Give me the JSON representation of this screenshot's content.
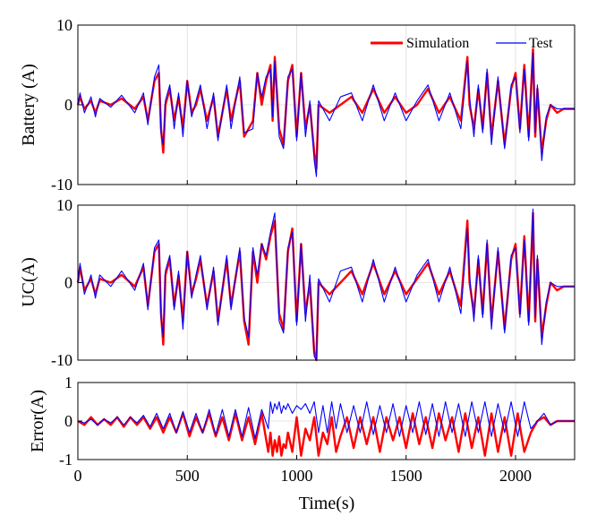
{
  "chart_data": [
    {
      "type": "line",
      "ylabel": "Battery (A)",
      "ylim": [
        -10,
        10
      ],
      "yticks": [
        -10,
        0,
        10
      ],
      "xlim": [
        0,
        2270
      ],
      "xticks": [
        0,
        500,
        1000,
        1500,
        2000
      ],
      "grid": true,
      "legend": {
        "position": "top-right",
        "entries": [
          "Simulation",
          "Test"
        ]
      },
      "series": [
        {
          "name": "Simulation",
          "color": "#ff0000",
          "x": [
            0,
            10,
            30,
            60,
            80,
            100,
            150,
            200,
            260,
            300,
            320,
            350,
            370,
            380,
            390,
            400,
            420,
            440,
            460,
            480,
            500,
            520,
            540,
            560,
            590,
            620,
            640,
            680,
            700,
            740,
            760,
            800,
            820,
            840,
            860,
            880,
            890,
            900,
            920,
            940,
            960,
            980,
            1000,
            1020,
            1040,
            1060,
            1080,
            1090,
            1100,
            1150,
            1200,
            1250,
            1300,
            1350,
            1400,
            1450,
            1500,
            1550,
            1600,
            1650,
            1700,
            1750,
            1780,
            1790,
            1810,
            1830,
            1850,
            1870,
            1890,
            1920,
            1950,
            1980,
            2000,
            2020,
            2040,
            2060,
            2080,
            2090,
            2100,
            2120,
            2140,
            2160,
            2190,
            2220,
            2270
          ],
          "values": [
            0,
            1,
            -0.5,
            0.5,
            -1,
            0.5,
            0,
            0.8,
            -0.5,
            1,
            -2,
            3,
            4,
            -3,
            -6,
            0,
            2,
            -2,
            1,
            -3,
            3,
            -1,
            0,
            2,
            -2,
            1,
            -4,
            2,
            -2,
            3,
            -4,
            -2,
            4,
            0,
            3,
            5,
            -2,
            6,
            -3,
            -5,
            3,
            5,
            -4,
            4,
            -3,
            0,
            -6,
            -8,
            0,
            -1,
            0,
            1,
            -1,
            2,
            -1,
            1,
            -1,
            0,
            2,
            -1,
            1,
            -2,
            6,
            0,
            -3,
            2,
            -3,
            4,
            -4,
            3,
            -5,
            2,
            4,
            -3,
            5,
            -4,
            7,
            -4,
            2,
            -6,
            -2,
            0,
            -1,
            -0.5,
            -0.5
          ]
        },
        {
          "name": "Test",
          "color": "#0000ff",
          "x": [
            0,
            10,
            30,
            60,
            80,
            100,
            150,
            200,
            260,
            300,
            320,
            350,
            370,
            380,
            390,
            400,
            420,
            440,
            460,
            480,
            500,
            520,
            540,
            560,
            590,
            620,
            640,
            680,
            700,
            740,
            760,
            800,
            820,
            840,
            860,
            880,
            890,
            900,
            920,
            940,
            960,
            980,
            1000,
            1020,
            1040,
            1060,
            1080,
            1090,
            1100,
            1150,
            1200,
            1250,
            1300,
            1350,
            1400,
            1450,
            1500,
            1550,
            1600,
            1650,
            1700,
            1750,
            1780,
            1790,
            1810,
            1830,
            1850,
            1870,
            1890,
            1920,
            1950,
            1980,
            2000,
            2020,
            2040,
            2060,
            2080,
            2090,
            2100,
            2120,
            2140,
            2160,
            2190,
            2220,
            2270
          ],
          "values": [
            0,
            1.5,
            -1,
            1,
            -1.5,
            0.8,
            -0.3,
            1.2,
            -1,
            1.5,
            -2.5,
            3.5,
            5,
            -3.5,
            -5,
            0.5,
            2.5,
            -3,
            1.5,
            -4,
            3,
            -1.5,
            0.5,
            2.5,
            -3,
            1.5,
            -4.5,
            2.5,
            -3,
            3.5,
            -3.5,
            -3,
            4,
            1,
            3.5,
            4.5,
            -1.5,
            5.5,
            -4,
            -5.5,
            3.5,
            4.5,
            -4.5,
            4,
            -4,
            0.5,
            -7,
            -9,
            0.5,
            -2,
            1,
            1.5,
            -2,
            2.5,
            -2,
            1.5,
            -2,
            0.5,
            2.5,
            -2,
            1.5,
            -3,
            5.5,
            1,
            -4,
            2.5,
            -3.5,
            4.5,
            -5,
            3.5,
            -5.5,
            2.5,
            3.5,
            -3.5,
            4.5,
            -4.5,
            6.5,
            -3.5,
            2.5,
            -7,
            -1.5,
            0,
            -0.5,
            -0.5,
            -0.5
          ]
        }
      ]
    },
    {
      "type": "line",
      "ylabel": "UC(A)",
      "ylim": [
        -10,
        10
      ],
      "yticks": [
        -10,
        0,
        10
      ],
      "xlim": [
        0,
        2270
      ],
      "xticks": [
        0,
        500,
        1000,
        1500,
        2000
      ],
      "grid": true,
      "series": [
        {
          "name": "Simulation",
          "color": "#ff0000",
          "x": [
            0,
            10,
            30,
            60,
            80,
            100,
            150,
            200,
            260,
            300,
            320,
            350,
            370,
            380,
            390,
            400,
            420,
            440,
            460,
            480,
            500,
            520,
            540,
            560,
            590,
            620,
            640,
            680,
            700,
            740,
            760,
            780,
            800,
            820,
            840,
            860,
            880,
            900,
            920,
            940,
            960,
            980,
            1000,
            1020,
            1040,
            1060,
            1080,
            1090,
            1100,
            1150,
            1200,
            1250,
            1300,
            1350,
            1400,
            1450,
            1500,
            1550,
            1600,
            1650,
            1700,
            1750,
            1780,
            1790,
            1810,
            1830,
            1850,
            1870,
            1890,
            1920,
            1950,
            1980,
            2000,
            2020,
            2040,
            2060,
            2080,
            2090,
            2100,
            2120,
            2140,
            2160,
            2190,
            2220,
            2270
          ],
          "values": [
            0,
            2,
            -1,
            0.5,
            -1.5,
            0.5,
            0,
            1,
            -0.5,
            2,
            -3,
            4,
            5,
            -4,
            -8,
            1,
            3,
            -3,
            1,
            -5,
            4,
            -1.5,
            0.5,
            3,
            -3,
            1.5,
            -5,
            3,
            -3,
            4,
            -5,
            -8,
            4,
            0,
            5,
            3,
            6,
            8,
            -4,
            -6,
            4,
            7,
            -5,
            5,
            -4,
            0,
            -9,
            -10,
            0,
            -1.5,
            0,
            1.5,
            -1.5,
            2.5,
            -1.5,
            1.5,
            -1.5,
            0.5,
            2.5,
            -1.5,
            1.5,
            -3,
            8,
            0,
            -4,
            3,
            -4,
            5,
            -5,
            4,
            -6,
            3,
            5,
            -4,
            6,
            -5,
            9,
            -5,
            3,
            -7,
            -3,
            0,
            -1,
            -0.5,
            -0.5
          ]
        },
        {
          "name": "Test",
          "color": "#0000ff",
          "x": [
            0,
            10,
            30,
            60,
            80,
            100,
            150,
            200,
            260,
            300,
            320,
            350,
            370,
            380,
            390,
            400,
            420,
            440,
            460,
            480,
            500,
            520,
            540,
            560,
            590,
            620,
            640,
            680,
            700,
            740,
            760,
            780,
            800,
            820,
            840,
            860,
            880,
            900,
            920,
            940,
            960,
            980,
            1000,
            1020,
            1040,
            1060,
            1080,
            1090,
            1100,
            1150,
            1200,
            1250,
            1300,
            1350,
            1400,
            1450,
            1500,
            1550,
            1600,
            1650,
            1700,
            1750,
            1780,
            1790,
            1810,
            1830,
            1850,
            1870,
            1890,
            1920,
            1950,
            1980,
            2000,
            2020,
            2040,
            2060,
            2080,
            2090,
            2100,
            2120,
            2140,
            2160,
            2190,
            2220,
            2270
          ],
          "values": [
            0,
            2.5,
            -1.5,
            1,
            -2,
            1,
            -0.5,
            1.5,
            -1,
            2.5,
            -3.5,
            4.5,
            5.5,
            -4.5,
            -7,
            1.5,
            3.5,
            -3.5,
            1.5,
            -6,
            4,
            -2,
            1,
            3.5,
            -3.5,
            2,
            -5.5,
            3.5,
            -3.5,
            4.5,
            -4.5,
            -7,
            4.5,
            1,
            5,
            3.5,
            6.5,
            9,
            -5,
            -6.5,
            4.5,
            6.5,
            -5.5,
            5,
            -5,
            1,
            -9.5,
            -10,
            0.5,
            -2.5,
            1.5,
            2,
            -2.5,
            3,
            -2.5,
            2,
            -2.5,
            1,
            3,
            -2.5,
            2,
            -4,
            7,
            1,
            -5,
            3.5,
            -4.5,
            5.5,
            -6,
            4.5,
            -6.5,
            3.5,
            4.5,
            -4.5,
            5.5,
            -5.5,
            9.5,
            -4.5,
            3.5,
            -8,
            -2.5,
            0,
            -0.5,
            -0.5,
            -0.5
          ]
        }
      ]
    },
    {
      "type": "line",
      "ylabel": "Error(A)",
      "xlabel": "Time(s)",
      "ylim": [
        -1,
        1
      ],
      "yticks": [
        -1,
        0,
        1
      ],
      "xlim": [
        0,
        2270
      ],
      "xticks": [
        0,
        500,
        1000,
        1500,
        2000
      ],
      "grid": true,
      "series": [
        {
          "name": "Simulation",
          "color": "#ff0000",
          "x": [
            0,
            30,
            60,
            90,
            120,
            150,
            180,
            210,
            240,
            270,
            300,
            330,
            360,
            390,
            420,
            450,
            480,
            510,
            540,
            570,
            600,
            630,
            660,
            690,
            720,
            750,
            780,
            810,
            840,
            870,
            880,
            890,
            900,
            910,
            920,
            930,
            940,
            950,
            960,
            980,
            1000,
            1020,
            1040,
            1060,
            1080,
            1100,
            1120,
            1140,
            1160,
            1180,
            1200,
            1230,
            1260,
            1290,
            1320,
            1350,
            1380,
            1410,
            1440,
            1470,
            1500,
            1530,
            1560,
            1590,
            1620,
            1650,
            1680,
            1710,
            1740,
            1770,
            1800,
            1830,
            1860,
            1890,
            1920,
            1950,
            1980,
            2010,
            2040,
            2070,
            2100,
            2130,
            2160,
            2190,
            2220,
            2270
          ],
          "values": [
            0,
            -0.1,
            0.1,
            -0.1,
            0.05,
            -0.1,
            0.1,
            -0.15,
            0.1,
            -0.1,
            0.1,
            -0.2,
            0.1,
            -0.3,
            0.1,
            -0.3,
            0.2,
            -0.4,
            0.1,
            -0.3,
            0.2,
            -0.4,
            0.1,
            -0.5,
            0.2,
            -0.5,
            0.1,
            -0.6,
            0.2,
            -0.8,
            -0.3,
            -0.9,
            -0.5,
            -0.8,
            -0.4,
            -0.9,
            -0.6,
            -0.7,
            -0.3,
            -0.8,
            0.1,
            -0.9,
            -0.2,
            -0.5,
            0.1,
            -0.9,
            -0.3,
            -0.6,
            0.1,
            -0.8,
            -0.4,
            0.1,
            -0.7,
            0.1,
            -0.6,
            0.1,
            -0.8,
            0.1,
            -0.5,
            0.1,
            -0.7,
            0.2,
            -0.6,
            0.1,
            -0.7,
            0.2,
            -0.5,
            0.1,
            -0.8,
            0.2,
            -0.7,
            0.1,
            -0.9,
            0.2,
            -0.8,
            0.1,
            -0.9,
            0.2,
            -0.8,
            -0.3,
            0,
            0.1,
            -0.1,
            0,
            0,
            0
          ]
        },
        {
          "name": "Test",
          "color": "#0000ff",
          "x": [
            0,
            30,
            60,
            90,
            120,
            150,
            180,
            210,
            240,
            270,
            300,
            330,
            360,
            390,
            420,
            450,
            480,
            510,
            540,
            570,
            600,
            630,
            660,
            690,
            720,
            750,
            780,
            810,
            840,
            870,
            880,
            890,
            900,
            910,
            920,
            930,
            940,
            950,
            960,
            980,
            1000,
            1020,
            1040,
            1060,
            1080,
            1100,
            1120,
            1140,
            1160,
            1180,
            1200,
            1230,
            1260,
            1290,
            1320,
            1350,
            1380,
            1410,
            1440,
            1470,
            1500,
            1530,
            1560,
            1590,
            1620,
            1650,
            1680,
            1710,
            1740,
            1770,
            1800,
            1830,
            1860,
            1890,
            1920,
            1950,
            1980,
            2010,
            2040,
            2070,
            2100,
            2130,
            2160,
            2190,
            2220,
            2270
          ],
          "values": [
            0,
            -0.05,
            0.05,
            -0.1,
            0.05,
            -0.05,
            0.1,
            -0.1,
            0.1,
            -0.05,
            0.15,
            -0.15,
            0.2,
            -0.2,
            0.2,
            -0.3,
            0.25,
            -0.3,
            0.2,
            -0.3,
            0.3,
            -0.35,
            0.3,
            -0.4,
            0.3,
            -0.4,
            0.35,
            -0.45,
            0.3,
            -0.2,
            0.5,
            0.2,
            0.45,
            0.3,
            0.5,
            0.2,
            0.4,
            0.3,
            0.45,
            0.2,
            0.4,
            0.3,
            0.45,
            0.2,
            0.5,
            -0.3,
            0.4,
            -0.3,
            0.5,
            -0.2,
            0.45,
            -0.3,
            0.4,
            -0.3,
            0.5,
            -0.35,
            0.4,
            -0.3,
            0.45,
            -0.4,
            0.4,
            -0.3,
            0.5,
            -0.35,
            0.45,
            -0.4,
            0.5,
            -0.3,
            0.45,
            -0.4,
            0.5,
            -0.3,
            0.5,
            -0.4,
            0.45,
            -0.3,
            0.5,
            -0.4,
            0.5,
            -0.2,
            0,
            0.2,
            -0.1,
            0,
            0,
            0
          ]
        }
      ]
    }
  ]
}
